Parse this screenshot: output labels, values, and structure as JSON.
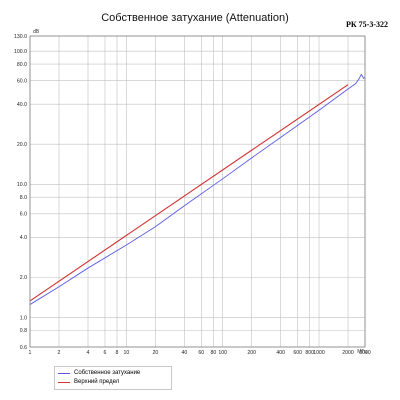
{
  "title": "Собственное затухание (Attenuation)",
  "cable_code": "РК 75-3-322",
  "colors": {
    "series_1": "#5a5ae6",
    "series_2": "#d03030",
    "grid": "#c0c0c0"
  },
  "chart_data": {
    "type": "line",
    "title": "Собственное затухание (Attenuation)",
    "xlabel": "МГц",
    "ylabel": "dB",
    "x_scale": "log",
    "y_scale": "log",
    "xlim": [
      1,
      3000
    ],
    "ylim": [
      0.6,
      130
    ],
    "grid": true,
    "legend_position": "bottom-left",
    "x_ticks": [
      1,
      2,
      4,
      6,
      8,
      10,
      20,
      40,
      60,
      80,
      100,
      200,
      400,
      600,
      800,
      1000,
      2000,
      3000
    ],
    "x_tick_labels": [
      "1",
      "2",
      "4",
      "6",
      "8",
      "10",
      "20",
      "40",
      "60",
      "80",
      "100",
      "200",
      "400",
      "600",
      "800",
      "1000",
      "2000",
      "3000"
    ],
    "y_ticks": [
      0.6,
      0.8,
      1.0,
      2.0,
      4.0,
      6.0,
      8.0,
      10.0,
      20.0,
      40.0,
      60.0,
      80.0,
      100.0,
      130.0
    ],
    "y_tick_labels": [
      "0.6",
      "0.8",
      "1.0",
      "2.0",
      "4.0",
      "6.0",
      "8.0",
      "10.0",
      "20.0",
      "40.0",
      "60.0",
      "80.0",
      "100.0",
      "130.0"
    ],
    "series": [
      {
        "name": "Собственное затухание",
        "color": "#5a5ae6",
        "x": [
          1,
          2,
          4,
          10,
          20,
          40,
          100,
          200,
          400,
          1000,
          2000,
          2400,
          2600,
          2750,
          2900,
          3000
        ],
        "y": [
          1.25,
          1.7,
          2.35,
          3.5,
          4.8,
          6.9,
          11.0,
          15.8,
          22.5,
          36.0,
          52.0,
          57.0,
          62.0,
          67.0,
          62.5,
          63.5
        ]
      },
      {
        "name": "Верхний предел",
        "color": "#d03030",
        "x": [
          1,
          2000
        ],
        "y": [
          1.33,
          56.0
        ]
      }
    ]
  }
}
